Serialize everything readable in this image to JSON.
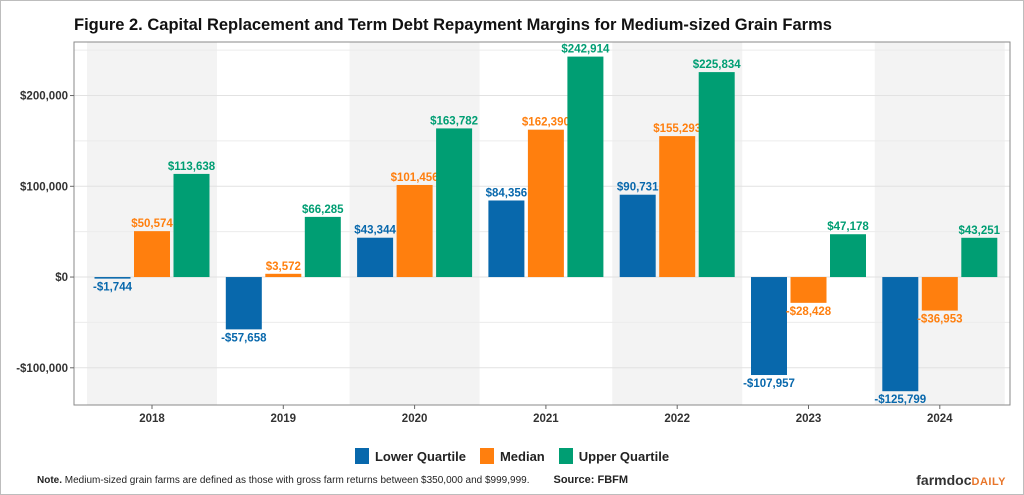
{
  "chart_data": {
    "type": "bar",
    "title": "Figure 2. Capital Replacement and Term Debt Repayment Margins for Medium-sized Grain Farms",
    "xlabel": "",
    "ylabel": "",
    "categories": [
      "2018",
      "2019",
      "2020",
      "2021",
      "2022",
      "2023",
      "2024"
    ],
    "series": [
      {
        "name": "Lower Quartile",
        "color": "#0868ac",
        "values": [
          -1744,
          -57658,
          43344,
          84356,
          90731,
          -107957,
          -125799
        ],
        "labels": [
          "-$1,744",
          "-$57,658",
          "$43,344",
          "$84,356",
          "$90,731",
          "-$107,957",
          "-$125,799"
        ]
      },
      {
        "name": "Median",
        "color": "#ff7f0e",
        "values": [
          50574,
          3572,
          101456,
          162390,
          155293,
          -28428,
          -36953
        ],
        "labels": [
          "$50,574",
          "$3,572",
          "$101,456",
          "$162,390",
          "$155,293",
          "-$28,428",
          "-$36,953"
        ]
      },
      {
        "name": "Upper Quartile",
        "color": "#009e73",
        "values": [
          113638,
          66285,
          163782,
          242914,
          225834,
          47178,
          43251
        ],
        "labels": [
          "$113,638",
          "$66,285",
          "$163,782",
          "$242,914",
          "$225,834",
          "$47,178",
          "$43,251"
        ]
      }
    ],
    "yticks": [
      -100000,
      0,
      100000,
      200000
    ],
    "ytick_labels": [
      "-$100,000",
      "$0",
      "$100,000",
      "$200,000"
    ],
    "ylim": [
      -141000,
      259000
    ],
    "grid": true,
    "alternating_band_shading": true,
    "legend_position": "bottom"
  },
  "footer": {
    "note_bold": "Note.",
    "note_text": " Medium-sized grain farms are defined as those with gross farm returns between $350,000 and $999,999.",
    "source": "Source: FBFM",
    "logo_main": "farmdoc",
    "logo_accent": "DAILY"
  }
}
